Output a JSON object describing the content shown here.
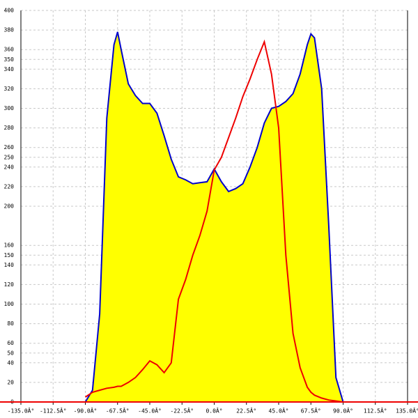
{
  "chart_data": {
    "type": "area",
    "x": [
      -90,
      -85,
      -80,
      -75,
      -70,
      -67.5,
      -65,
      -60,
      -55,
      -50,
      -45,
      -40,
      -35,
      -30,
      -25,
      -20,
      -15,
      -10,
      -5,
      0,
      5,
      10,
      15,
      20,
      25,
      30,
      35,
      40,
      45,
      50,
      55,
      60,
      65,
      67.5,
      70,
      75,
      80,
      85,
      90
    ],
    "series": [
      {
        "color": "#0000cc",
        "fill": "#ffff00",
        "values": [
          0,
          12,
          90,
          290,
          365,
          378,
          360,
          325,
          313,
          305,
          305,
          295,
          272,
          248,
          230,
          227,
          223,
          224,
          225,
          238,
          225,
          215,
          218,
          223,
          240,
          260,
          285,
          300,
          302,
          307,
          315,
          335,
          365,
          376,
          372,
          320,
          180,
          25,
          0
        ]
      },
      {
        "color": "#ee0000",
        "values": [
          5,
          10,
          12,
          14,
          15,
          16,
          16,
          20,
          25,
          33,
          42,
          38,
          30,
          40,
          105,
          125,
          150,
          170,
          195,
          237,
          250,
          270,
          290,
          312,
          330,
          350,
          368,
          335,
          280,
          150,
          70,
          35,
          15,
          10,
          7,
          4,
          2,
          1,
          0
        ]
      }
    ],
    "xlim": [
      -135,
      135
    ],
    "xticks": [
      {
        "value": -135,
        "label": "-135.0Â°"
      },
      {
        "value": -112.5,
        "label": "-112.5Â°"
      },
      {
        "value": -90,
        "label": "-90.0Â°"
      },
      {
        "value": -67.5,
        "label": "-67.5Â°"
      },
      {
        "value": -45,
        "label": "-45.0Â°"
      },
      {
        "value": -22.5,
        "label": "-22.5Â°"
      },
      {
        "value": 0,
        "label": "0.0Â°"
      },
      {
        "value": 22.5,
        "label": "22.5Â°"
      },
      {
        "value": 45,
        "label": "45.0Â°"
      },
      {
        "value": 67.5,
        "label": "67.5Â°"
      },
      {
        "value": 90,
        "label": "90.0Â°"
      },
      {
        "value": 112.5,
        "label": "112.5Â°"
      },
      {
        "value": 135,
        "label": "135.0Â°"
      }
    ],
    "ylim": [
      0,
      400
    ],
    "yticks": [
      0,
      20,
      40,
      50,
      60,
      80,
      100,
      120,
      140,
      150,
      160,
      200,
      220,
      240,
      250,
      260,
      280,
      300,
      320,
      340,
      350,
      360,
      380,
      400
    ],
    "grid": true
  }
}
